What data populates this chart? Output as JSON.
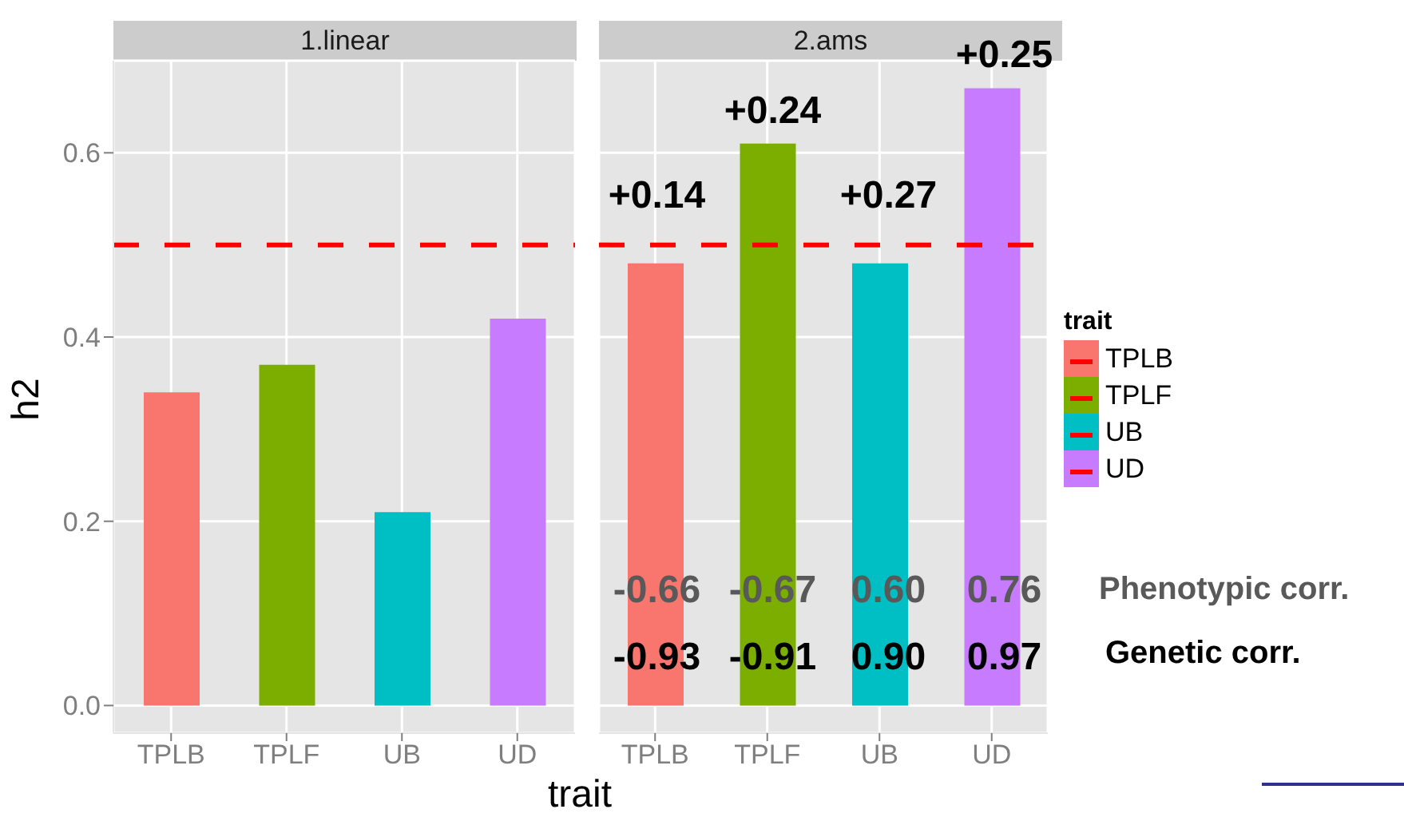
{
  "chart_data": [
    {
      "type": "bar",
      "title": "1.linear",
      "ylabel": "h2",
      "xlabel": "trait",
      "categories": [
        "TPLB",
        "TPLF",
        "UB",
        "UD"
      ],
      "series": [
        {
          "color": "#f8766d",
          "values": [
            0.34,
            null,
            null,
            null
          ]
        },
        {
          "color": "#7cae00",
          "values": [
            null,
            0.37,
            null,
            null
          ]
        },
        {
          "color": "#00bfc4",
          "values": [
            null,
            null,
            0.21,
            null
          ]
        },
        {
          "color": "#c77cff",
          "values": [
            null,
            null,
            null,
            0.42
          ]
        }
      ],
      "ylim": [
        -0.03,
        0.7
      ],
      "yticks": [
        {
          "value": 0,
          "label": "0.0"
        },
        0.2,
        0.4,
        0.6
      ],
      "grid": true,
      "ref_lines": [
        {
          "axis": "y",
          "value": 0.5,
          "color": "#ff0000",
          "line_style": "dashed"
        }
      ]
    },
    {
      "type": "bar",
      "title": "2.ams",
      "categories": [
        "TPLB",
        "TPLF",
        "UB",
        "UD"
      ],
      "series": [
        {
          "name": "TPLB",
          "color": "#f8766d",
          "values": [
            0.48,
            null,
            null,
            null
          ]
        },
        {
          "name": "TPLF",
          "color": "#7cae00",
          "values": [
            null,
            0.61,
            null,
            null
          ]
        },
        {
          "name": "UB",
          "color": "#00bfc4",
          "values": [
            null,
            null,
            0.48,
            null
          ]
        },
        {
          "name": "UD",
          "color": "#c77cff",
          "values": [
            null,
            null,
            null,
            0.67
          ]
        }
      ],
      "ylim": [
        -0.03,
        0.7
      ],
      "yticks": [
        0,
        0.2,
        0.4,
        0.6
      ],
      "grid": true,
      "tick_labels": "x",
      "legend": "right",
      "legend_title": "trait",
      "ref_lines": [
        {
          "axis": "y",
          "value": 0.5,
          "color": "#ff0000",
          "line_style": "dashed"
        }
      ],
      "annotations": [
        "+0.14",
        "+0.24",
        "+0.27",
        "+0.25",
        "-0.66",
        "-0.67",
        "0.60",
        "0.76",
        "-0.93",
        "-0.91",
        "0.90",
        "0.97",
        "Phenotypic corr.",
        "Genetic corr."
      ]
    }
  ]
}
